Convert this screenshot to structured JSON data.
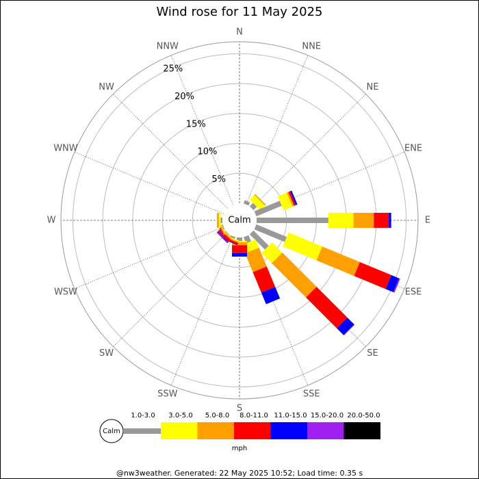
{
  "chart_data": {
    "type": "windrose",
    "title": "Wind rose for 11 May 2025",
    "calm_label": "Calm",
    "categories": [
      "N",
      "NNE",
      "NE",
      "ENE",
      "E",
      "ESE",
      "SE",
      "SSE",
      "S",
      "SSW",
      "SW",
      "WSW",
      "W",
      "WNW",
      "NW",
      "NNW"
    ],
    "ylim": [
      0,
      27
    ],
    "yticks": [
      {
        "value": 5,
        "label": "5%"
      },
      {
        "value": 10,
        "label": "10%"
      },
      {
        "value": 15,
        "label": "15%"
      },
      {
        "value": 20,
        "label": "20%"
      },
      {
        "value": 25,
        "label": "25%"
      }
    ],
    "series": [
      {
        "name": "1.0-3.0",
        "color": "#999999",
        "values": [
          0,
          0.6,
          0.8,
          4.6,
          12,
          5.5,
          3.6,
          1.1,
          0.6,
          0.3,
          0.1,
          0.2,
          0.3,
          0,
          0,
          0
        ]
      },
      {
        "name": "3.0-5.0",
        "color": "#ffff00",
        "values": [
          0,
          0,
          1.1,
          1.6,
          4.2,
          6.1,
          2.4,
          1.5,
          0.2,
          0.2,
          0.1,
          0.1,
          0.3,
          0,
          0,
          0
        ]
      },
      {
        "name": "5.0-8.0",
        "color": "#ffa000",
        "values": [
          0,
          0,
          0.2,
          0.3,
          3.4,
          6.8,
          8.1,
          3.4,
          0.5,
          0.2,
          0.3,
          0.2,
          0.3,
          0,
          0,
          0
        ]
      },
      {
        "name": "8.0-11.0",
        "color": "#ff0000",
        "values": [
          0,
          0,
          0,
          0.3,
          2.5,
          5.7,
          7.3,
          3.7,
          1.3,
          0.3,
          0.5,
          0.1,
          0,
          0,
          0,
          0
        ]
      },
      {
        "name": "11.0-15.0",
        "color": "#0000ff",
        "values": [
          0,
          0,
          0,
          0.3,
          0.4,
          1.4,
          1.6,
          2.1,
          0.6,
          0.1,
          0.1,
          0,
          0,
          0,
          0,
          0
        ]
      },
      {
        "name": "15.0-20.0",
        "color": "#a020f0",
        "values": [
          0,
          0,
          0,
          0,
          0,
          0.2,
          0.1,
          0,
          0,
          0,
          0.2,
          0.1,
          0,
          0,
          0,
          0
        ]
      },
      {
        "name": "20.0-50.0",
        "color": "#000000",
        "values": [
          0,
          0,
          0,
          0,
          0,
          0,
          0,
          0,
          0,
          0,
          0,
          0,
          0,
          0,
          0,
          0
        ]
      }
    ],
    "legend_unit": "mph",
    "footer": "@nw3weather.  Generated: 22 May 2025 10:52; Load time: 0.35 s"
  }
}
